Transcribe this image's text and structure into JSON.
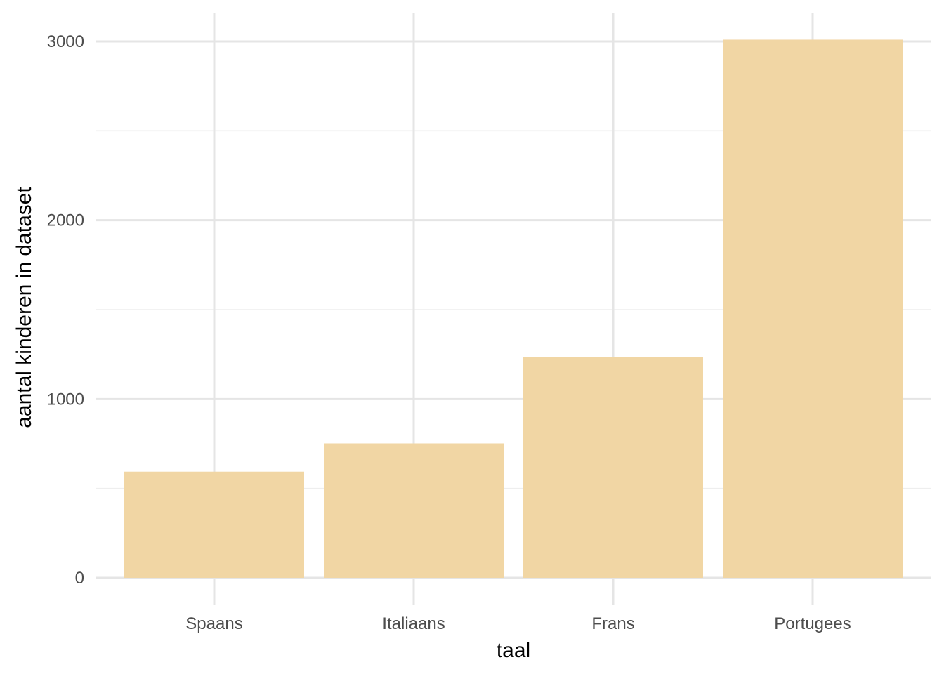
{
  "chart_data": {
    "type": "bar",
    "title": "",
    "xlabel": "taal",
    "ylabel": "aantal kinderen in dataset",
    "categories": [
      "Spaans",
      "Italiaans",
      "Frans",
      "Portugees"
    ],
    "values": [
      594,
      752,
      1233,
      3010
    ],
    "ylim": [
      0,
      3000
    ],
    "yticks": [
      "0",
      "1000",
      "2000",
      "3000"
    ],
    "grid": true,
    "legend": "none",
    "bar_color": "#f1d6a4"
  }
}
